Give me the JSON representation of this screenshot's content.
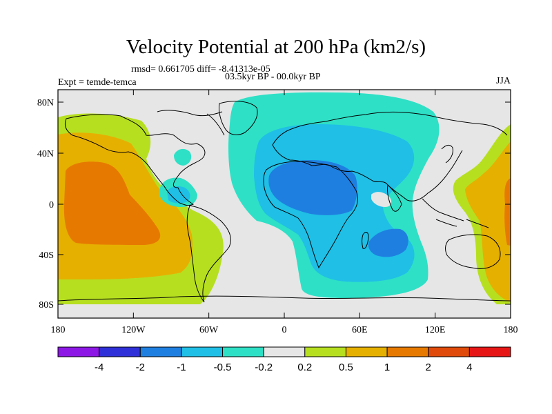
{
  "title": "Velocity Potential at 200 hPa (km2/s)",
  "stats_line": "rmsd= 0.661705 diff= -8.41313e-05",
  "experiment_line": "Expt = temde-temca",
  "period_line": "03.5kyr BP - 00.0kyr BP",
  "season": "JJA",
  "lat_ticks": [
    "80N",
    "40N",
    "0",
    "40S",
    "80S"
  ],
  "lon_ticks": [
    "180",
    "120W",
    "60W",
    "0",
    "60E",
    "120E",
    "180"
  ],
  "colorbar": {
    "colors": [
      "#8d18e6",
      "#3030d8",
      "#1f7fe0",
      "#1fbfe6",
      "#2ee0c6",
      "#e6e6e6",
      "#b6df20",
      "#e6b000",
      "#e67a00",
      "#e04a0a",
      "#e61616"
    ],
    "labels": [
      "-4",
      "-2",
      "-1",
      "-0.5",
      "-0.2",
      "0.2",
      "0.5",
      "1",
      "2",
      "4"
    ]
  },
  "map_colors": {
    "ocean_land_bg": "#e6e6e6",
    "level_0_2": "#b6df20",
    "level_0_5": "#e6b000",
    "level_1": "#e67a00",
    "level_neg_0_2": "#2ee0c6",
    "level_neg_0_5": "#1fbfe6",
    "level_neg_1": "#1f7fe0"
  }
}
